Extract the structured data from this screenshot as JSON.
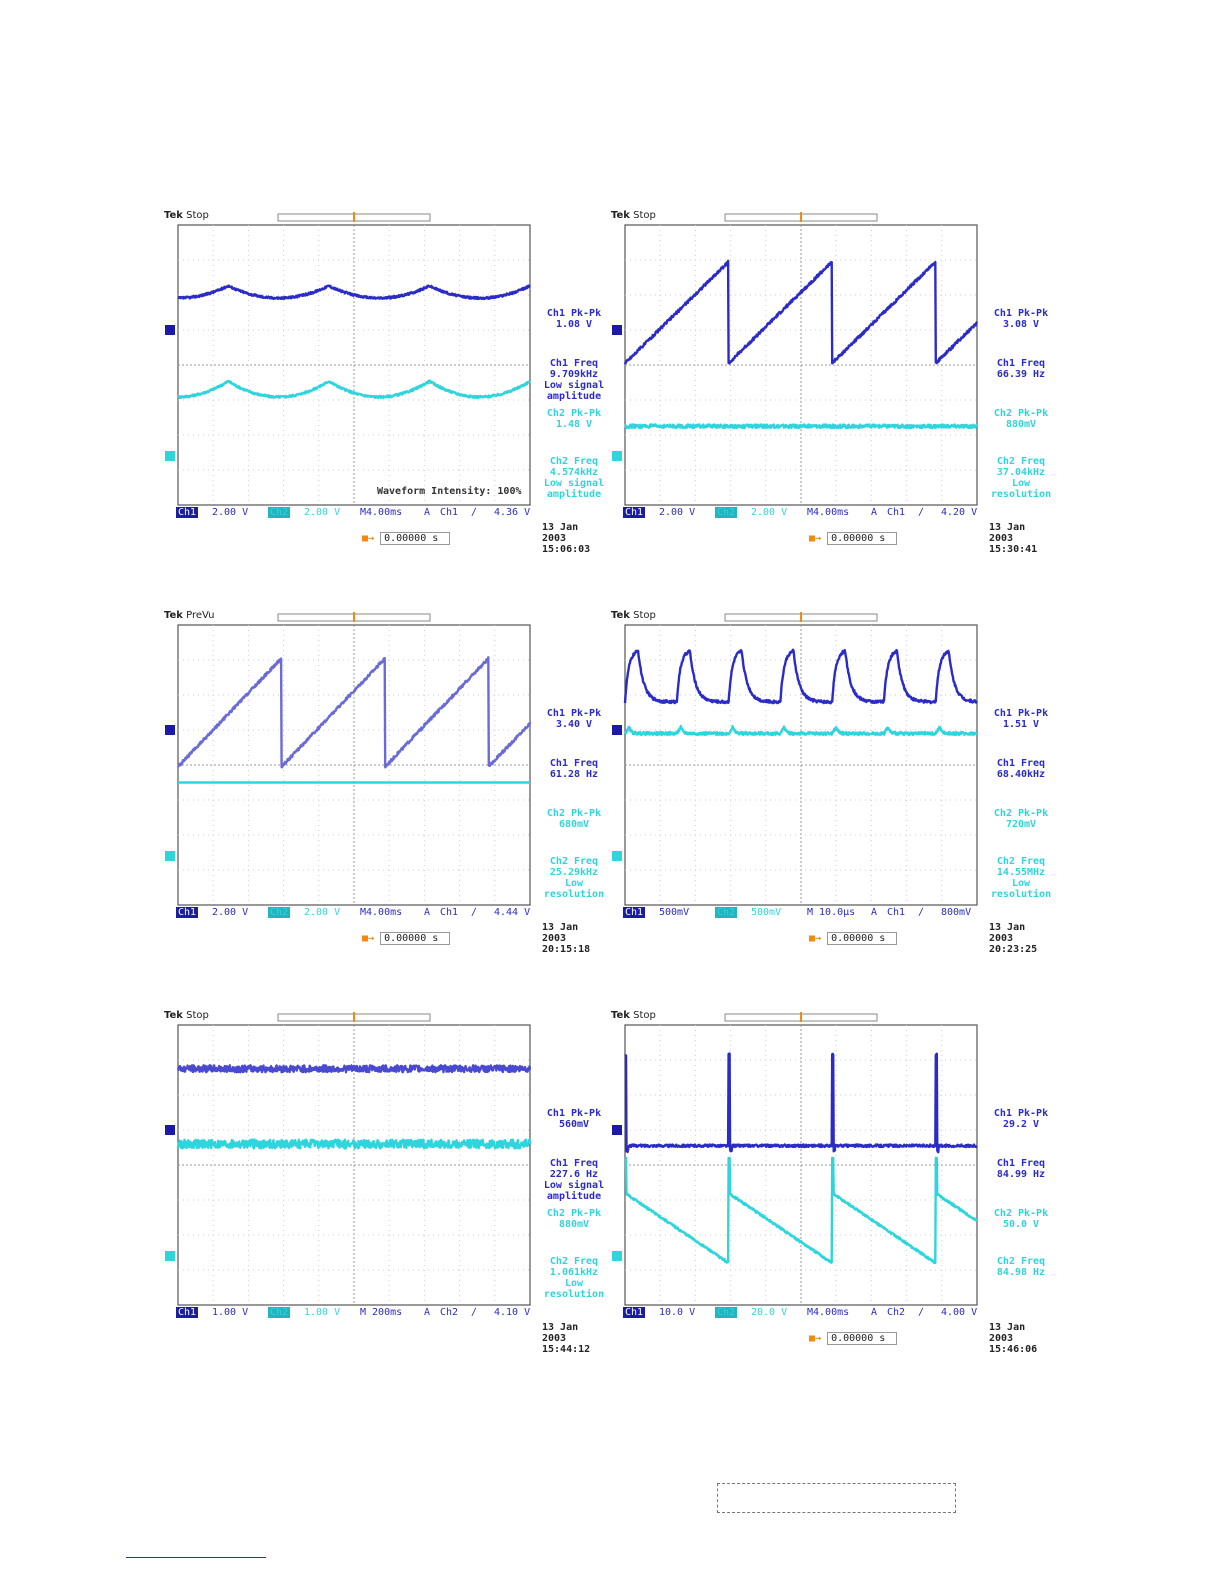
{
  "scopes": [
    {
      "status": "Stop",
      "meas": [
        "Ch1 Pk-Pk\n1.08 V",
        "Ch1 Freq\n9.709kHz\nLow signal\namplitude",
        "Ch2 Pk-Pk\n1.48 V",
        "Ch2 Freq\n4.574kHz\nLow signal\namplitude"
      ],
      "bottom": {
        "ch1": "Ch1",
        "ch1_scale": "2.00 V",
        "ch2": "Ch2",
        "ch2_scale": "2.00 V",
        "time": "M4.00ms",
        "mode": "A",
        "trig_src": "Ch1",
        "trig_slope": "∕",
        "trig_level": "4.36 V"
      },
      "date": "13 Jan  2003\n15:06:03",
      "trig_time": "0.00000 s",
      "intensity": "Waveform Intensity: 100%"
    },
    {
      "status": "Stop",
      "meas": [
        "Ch1 Pk-Pk\n3.08 V",
        "Ch1 Freq\n66.39 Hz",
        "Ch2 Pk-Pk\n880mV",
        "Ch2 Freq\n37.04kHz\nLow\nresolution"
      ],
      "bottom": {
        "ch1": "Ch1",
        "ch1_scale": "2.00 V",
        "ch2": "Ch2",
        "ch2_scale": "2.00 V",
        "time": "M4.00ms",
        "mode": "A",
        "trig_src": "Ch1",
        "trig_slope": "∕",
        "trig_level": "4.20 V"
      },
      "date": "13 Jan  2003\n15:30:41",
      "trig_time": "0.00000 s"
    },
    {
      "status": "PreVu",
      "meas": [
        "Ch1 Pk-Pk\n3.40 V",
        "Ch1 Freq\n61.28 Hz",
        "Ch2 Pk-Pk\n680mV",
        "Ch2 Freq\n25.29kHz\nLow\nresolution"
      ],
      "bottom": {
        "ch1": "Ch1",
        "ch1_scale": "2.00 V",
        "ch2": "Ch2",
        "ch2_scale": "2.00 V",
        "time": "M4.00ms",
        "mode": "A",
        "trig_src": "Ch1",
        "trig_slope": "∕",
        "trig_level": "4.44 V"
      },
      "date": "13 Jan  2003\n20:15:18",
      "trig_time": "0.00000 s"
    },
    {
      "status": "Stop",
      "meas": [
        "Ch1 Pk-Pk\n1.51 V",
        "Ch1 Freq\n68.40kHz",
        "Ch2 Pk-Pk\n720mV",
        "Ch2 Freq\n14.55MHz\nLow\nresolution"
      ],
      "bottom": {
        "ch1": "Ch1",
        "ch1_scale": "500mV",
        "ch2": "Ch2",
        "ch2_scale": "500mV",
        "time": "M 10.0µs",
        "mode": "A",
        "trig_src": "Ch1",
        "trig_slope": "∕",
        "trig_level": "800mV"
      },
      "date": "13 Jan  2003\n20:23:25",
      "trig_time": "0.00000 s"
    },
    {
      "status": "Stop",
      "meas": [
        "Ch1 Pk-Pk\n560mV",
        "Ch1 Freq\n227.6 Hz\nLow signal\namplitude",
        "Ch2 Pk-Pk\n880mV",
        "Ch2 Freq\n1.061kHz\nLow\nresolution"
      ],
      "bottom": {
        "ch1": "Ch1",
        "ch1_scale": "1.00 V",
        "ch2": "Ch2",
        "ch2_scale": "1.00 V",
        "time": "M 200ms",
        "mode": "A",
        "trig_src": "Ch2",
        "trig_slope": "∕",
        "trig_level": "4.10 V"
      },
      "date": "13 Jan  2003\n15:44:12",
      "trig_time": ""
    },
    {
      "status": "Stop",
      "meas": [
        "Ch1 Pk-Pk\n29.2 V",
        "Ch1 Freq\n84.99 Hz",
        "Ch2 Pk-Pk\n50.0 V",
        "Ch2 Freq\n84.98 Hz"
      ],
      "bottom": {
        "ch1": "Ch1",
        "ch1_scale": "10.0 V",
        "ch2": "Ch2",
        "ch2_scale": "20.0 V",
        "time": "M4.00ms",
        "mode": "A",
        "trig_src": "Ch2",
        "trig_slope": "∕",
        "trig_level": "4.00 V"
      },
      "date": "13 Jan  2003\n15:46:06",
      "trig_time": "0.00000 s"
    }
  ],
  "chart_data": [
    {
      "type": "line",
      "series": [
        {
          "shape": "cusp",
          "color": "#2b2bc8",
          "level": 2.0,
          "amplitude": 0.35,
          "periods": 3.5
        },
        {
          "shape": "cusp",
          "color": "#2fd5dc",
          "level": -0.8,
          "amplitude": 0.45,
          "periods": 3.5
        }
      ],
      "x_divisions": 10,
      "y_divisions": 8
    },
    {
      "type": "line",
      "series": [
        {
          "shape": "sawtooth",
          "color": "#2b2bc8",
          "level": 1.5,
          "amplitude": 1.45,
          "periods": 3.4
        },
        {
          "shape": "flat-noise",
          "color": "#2fd5dc",
          "level": -1.75,
          "amplitude": 0.1
        }
      ],
      "x_divisions": 10,
      "y_divisions": 8
    },
    {
      "type": "line",
      "series": [
        {
          "shape": "sawtooth",
          "color": "#6b6bd8",
          "level": 1.5,
          "amplitude": 1.55,
          "periods": 3.4
        },
        {
          "shape": "flat",
          "color": "#2fd5dc",
          "level": -0.5,
          "amplitude": 0.0
        }
      ],
      "x_divisions": 10,
      "y_divisions": 8
    },
    {
      "type": "line",
      "series": [
        {
          "shape": "rc-pulse",
          "color": "#2b2bc8",
          "level": 2.7,
          "amplitude": 1.5,
          "periods": 6.8
        },
        {
          "shape": "small-bump",
          "color": "#2fd5dc",
          "level": 0.9,
          "amplitude": 0.3,
          "periods": 6.8
        }
      ],
      "x_divisions": 10,
      "y_divisions": 8
    },
    {
      "type": "line",
      "series": [
        {
          "shape": "flat-noise",
          "color": "#4a4ad0",
          "level": 2.75,
          "amplitude": 0.2
        },
        {
          "shape": "flat-noise",
          "color": "#2fd5dc",
          "level": 0.6,
          "amplitude": 0.25
        }
      ],
      "x_divisions": 10,
      "y_divisions": 8
    },
    {
      "type": "line",
      "series": [
        {
          "shape": "spike",
          "color": "#2b2bc8",
          "level": 0.55,
          "amplitude": 2.6,
          "periods": 3.4
        },
        {
          "shape": "spike-decay",
          "color": "#2fd5dc",
          "level": -2.8,
          "amplitude": 2.0,
          "periods": 3.4
        }
      ],
      "x_divisions": 10,
      "y_divisions": 8
    }
  ]
}
